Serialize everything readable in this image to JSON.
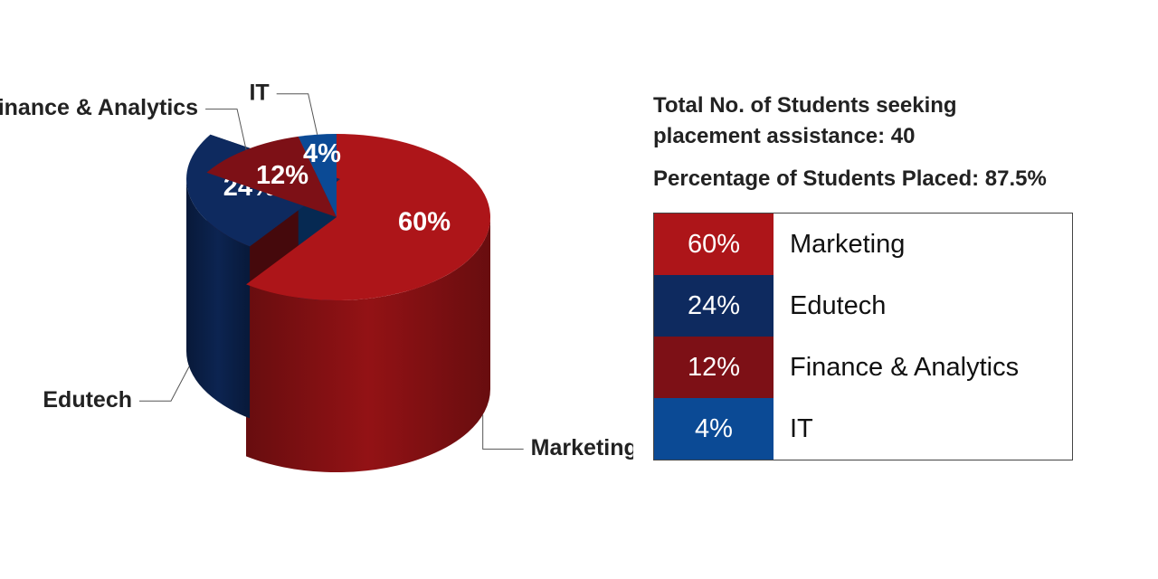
{
  "chart_data": {
    "type": "pie3d",
    "categories": [
      "Marketing",
      "Edutech",
      "Finance & Analytics",
      "IT"
    ],
    "values": [
      60,
      24,
      12,
      4
    ],
    "value_labels": [
      "60%",
      "24%",
      "12%",
      "4%"
    ],
    "colors": [
      "#ad1519",
      "#0e2a5f",
      "#7d1016",
      "#0b4a95"
    ]
  },
  "info": [
    "Total No. of Students seeking placement assistance: 40",
    "Percentage of Students Placed: 87.5%"
  ]
}
